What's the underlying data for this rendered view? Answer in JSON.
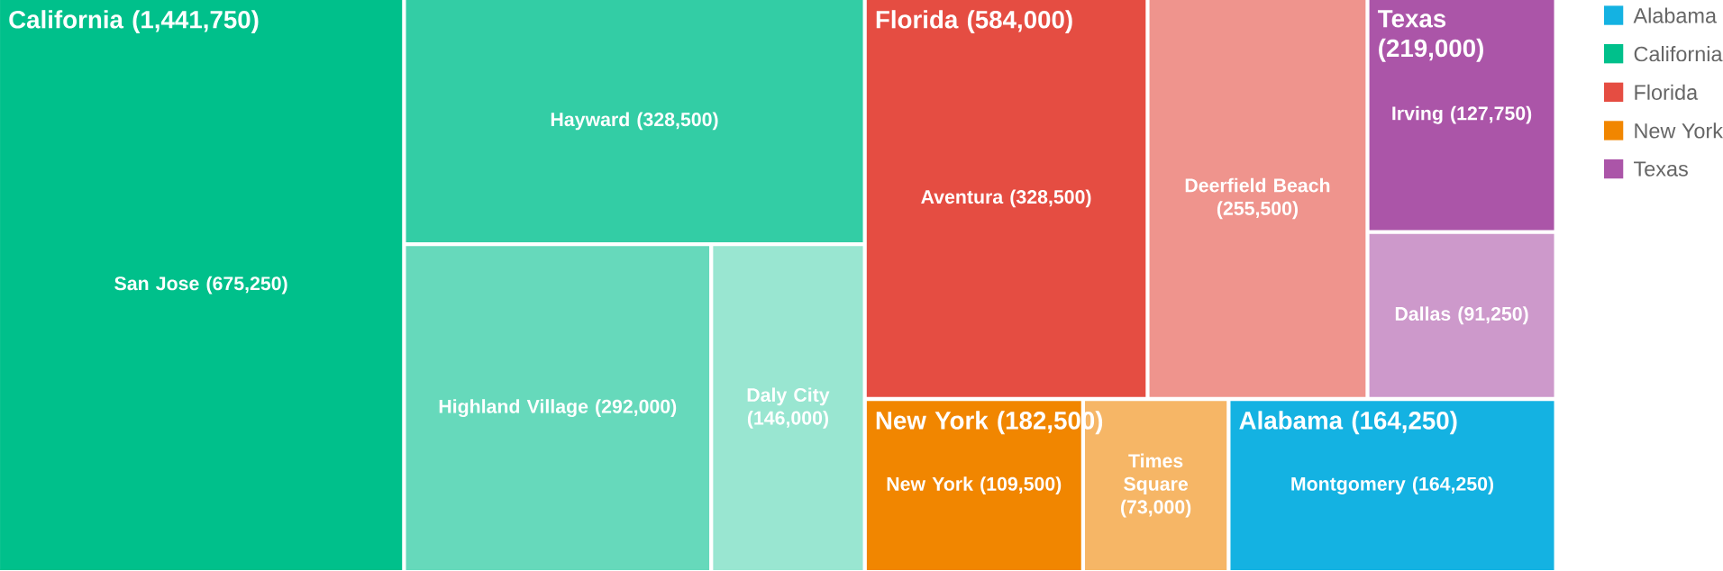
{
  "chart_data": {
    "type": "other",
    "categories": [
      "San Jose",
      "Hayward",
      "Highland Village",
      "Daly City",
      "Aventura",
      "Deerfield Beach",
      "Irving",
      "Dallas",
      "New York",
      "Times Square",
      "Montgomery"
    ],
    "legend": "right",
    "series": [
      {
        "name": "Alabama",
        "values": [
          null,
          null,
          null,
          null,
          null,
          null,
          null,
          null,
          null,
          null,
          164250
        ],
        "value_labels": [
          null,
          null,
          null,
          null,
          null,
          null,
          null,
          null,
          null,
          null,
          "(164,250)"
        ],
        "colors": [
          null,
          null,
          null,
          null,
          null,
          null,
          null,
          null,
          null,
          null,
          "#14b2e2"
        ]
      },
      {
        "name": "California",
        "values": [
          675250,
          328500,
          292000,
          146000,
          null,
          null,
          null,
          null,
          null,
          null,
          null
        ],
        "value_labels": [
          "(675,250)",
          "(328,500)",
          "(292,000)",
          "(146,000)",
          null,
          null,
          null,
          null,
          null,
          null,
          null
        ],
        "colors": [
          "#00c08b",
          "#33cda5",
          "#66d9bb",
          "#99e6d1",
          null,
          null,
          null,
          null,
          null,
          null,
          null
        ]
      },
      {
        "name": "Florida",
        "values": [
          null,
          null,
          null,
          null,
          328500,
          255500,
          null,
          null,
          null,
          null,
          null
        ],
        "value_labels": [
          null,
          null,
          null,
          null,
          "(328,500)",
          "(255,500)",
          null,
          null,
          null,
          null,
          null
        ],
        "colors": [
          null,
          null,
          null,
          null,
          "#e54d42",
          "#ef948d",
          null,
          null,
          null,
          null,
          null
        ]
      },
      {
        "name": "New York",
        "values": [
          null,
          null,
          null,
          null,
          null,
          null,
          null,
          null,
          109500,
          73000,
          null
        ],
        "value_labels": [
          null,
          null,
          null,
          null,
          null,
          null,
          null,
          null,
          "(109,500)",
          "(73,000)",
          null
        ],
        "colors": [
          null,
          null,
          null,
          null,
          null,
          null,
          null,
          null,
          "#f18600",
          "#f6b666",
          null
        ]
      },
      {
        "name": "Texas",
        "values": [
          null,
          null,
          null,
          null,
          null,
          null,
          127750,
          91250,
          null,
          null,
          null
        ],
        "value_labels": [
          null,
          null,
          null,
          null,
          null,
          null,
          "(127,750)",
          "(91,250)",
          null,
          null,
          null
        ],
        "colors": [
          null,
          null,
          null,
          null,
          null,
          null,
          "#ab55a8",
          "#cd99cb",
          null,
          null,
          null
        ]
      }
    ],
    "annotations": [
      "Alabama (164,250)",
      "California (1,441,750)",
      "Florida (584,000)",
      "New York (182,500)",
      "Texas (219,000)"
    ]
  }
}
